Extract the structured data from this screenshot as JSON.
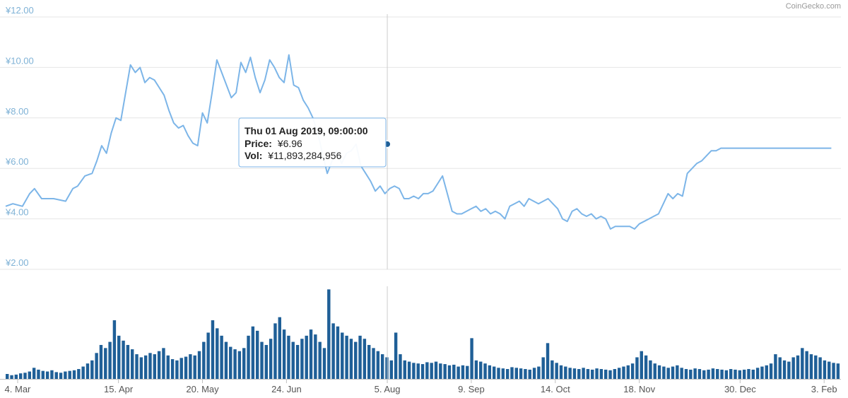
{
  "credit": "CoinGecko.com",
  "colors": {
    "line": "#7cb5e8",
    "volume": "#1f5f97",
    "grid": "#e6e6e6",
    "crosshair": "#cccccc",
    "marker": "#1f5f97",
    "tooltip_border": "#7cb5e8"
  },
  "tooltip": {
    "date": "Thu 01 Aug 2019, 09:00:00",
    "price_label": "Price:",
    "price_value": "¥6.96",
    "vol_label": "Vol:",
    "vol_value": "¥11,893,284,956"
  },
  "chart_data": {
    "type": "line",
    "ylim": [
      2,
      12
    ],
    "y_ticks": [
      "¥2.00",
      "¥4.00",
      "¥6.00",
      "¥8.00",
      "¥10.00",
      "¥12.00"
    ],
    "y_tick_values": [
      2,
      4,
      6,
      8,
      10,
      12
    ],
    "x_ticks": [
      "4. Mar",
      "15. Apr",
      "20. May",
      "24. Jun",
      "5. Aug",
      "9. Sep",
      "14. Oct",
      "18. Nov",
      "30. Dec",
      "3. Feb"
    ],
    "x_tick_days": [
      5,
      47,
      82,
      117,
      159,
      194,
      229,
      264,
      306,
      341
    ],
    "x_range_days": [
      0,
      348
    ],
    "grid": true,
    "price_series": {
      "day": [
        0,
        3,
        7,
        10,
        12,
        15,
        20,
        25,
        28,
        30,
        33,
        36,
        38,
        40,
        42,
        44,
        46,
        48,
        50,
        52,
        54,
        56,
        58,
        60,
        62,
        64,
        66,
        68,
        70,
        72,
        74,
        76,
        78,
        80,
        82,
        84,
        86,
        88,
        90,
        92,
        94,
        96,
        98,
        100,
        102,
        104,
        106,
        108,
        110,
        112,
        114,
        116,
        118,
        120,
        122,
        124,
        126,
        128,
        130,
        132,
        134,
        136,
        138,
        140,
        142,
        144,
        146,
        148,
        150,
        152,
        154,
        156,
        158,
        160,
        162,
        164,
        166,
        168,
        170,
        172,
        174,
        176,
        178,
        180,
        182,
        184,
        186,
        188,
        190,
        192,
        194,
        196,
        198,
        200,
        202,
        204,
        206,
        208,
        210,
        212,
        214,
        216,
        218,
        220,
        222,
        224,
        226,
        228,
        230,
        232,
        234,
        236,
        238,
        240,
        242,
        244,
        246,
        248,
        250,
        252,
        254,
        256,
        258,
        260,
        262,
        264,
        266,
        268,
        270,
        272,
        274,
        276,
        278,
        280,
        282,
        284,
        286,
        288,
        290,
        292,
        294,
        296,
        298,
        300,
        302,
        304,
        306,
        308,
        310,
        312,
        314,
        316,
        318,
        320,
        322,
        324,
        326,
        328,
        330,
        332,
        334,
        336,
        338,
        340,
        342,
        344,
        346,
        348
      ],
      "price": [
        4.5,
        4.6,
        4.5,
        5.0,
        5.2,
        4.8,
        4.8,
        4.7,
        5.2,
        5.3,
        5.7,
        5.8,
        6.3,
        6.9,
        6.6,
        7.4,
        8.0,
        7.9,
        9.0,
        10.1,
        9.8,
        10.0,
        9.4,
        9.6,
        9.5,
        9.2,
        8.9,
        8.3,
        7.8,
        7.6,
        7.7,
        7.3,
        7.0,
        6.9,
        8.2,
        7.8,
        9.0,
        10.3,
        9.8,
        9.3,
        8.8,
        9.0,
        10.2,
        9.8,
        10.4,
        9.6,
        9.0,
        9.5,
        10.3,
        10.0,
        9.6,
        9.4,
        10.5,
        9.3,
        9.2,
        8.7,
        8.4,
        8.0,
        7.4,
        6.6,
        5.8,
        6.3,
        6.7,
        6.2,
        6.6,
        6.7,
        6.96,
        6.1,
        5.8,
        5.5,
        5.1,
        5.3,
        5.0,
        5.2,
        5.3,
        5.2,
        4.8,
        4.8,
        4.9,
        4.8,
        5.0,
        5.0,
        5.1,
        5.4,
        5.7,
        5.0,
        4.3,
        4.2,
        4.2,
        4.3,
        4.4,
        4.5,
        4.3,
        4.4,
        4.2,
        4.3,
        4.2,
        4.0,
        4.5,
        4.6,
        4.7,
        4.5,
        4.8,
        4.7,
        4.6,
        4.7,
        4.8,
        4.6,
        4.4,
        4.0,
        3.9,
        4.3,
        4.4,
        4.2,
        4.1,
        4.2,
        4.0,
        4.1,
        4.0,
        3.6,
        3.7,
        3.7,
        3.7,
        3.7,
        3.6,
        3.8,
        3.9,
        4.0,
        4.1,
        4.2,
        4.6,
        5.0,
        4.8,
        5.0,
        4.9,
        5.8,
        6.0,
        6.2,
        6.3,
        6.5,
        6.7,
        6.7,
        6.8,
        6.8,
        6.8,
        6.8,
        6.8,
        6.8,
        6.8,
        6.8,
        6.8,
        6.8,
        6.8,
        6.8,
        6.8,
        6.8,
        6.8,
        6.8,
        6.8,
        6.8,
        6.8,
        6.8,
        6.8,
        6.8,
        6.8,
        6.8
      ]
    },
    "volume_series": {
      "bars_per_day": 1,
      "values": [
        0.08,
        0.06,
        0.07,
        0.09,
        0.1,
        0.12,
        0.18,
        0.15,
        0.13,
        0.12,
        0.14,
        0.11,
        0.1,
        0.12,
        0.13,
        0.14,
        0.16,
        0.2,
        0.25,
        0.3,
        0.42,
        0.55,
        0.5,
        0.6,
        0.95,
        0.7,
        0.62,
        0.55,
        0.48,
        0.4,
        0.35,
        0.38,
        0.42,
        0.4,
        0.45,
        0.5,
        0.38,
        0.32,
        0.3,
        0.34,
        0.36,
        0.4,
        0.38,
        0.45,
        0.6,
        0.75,
        0.95,
        0.82,
        0.7,
        0.6,
        0.52,
        0.48,
        0.45,
        0.5,
        0.7,
        0.85,
        0.78,
        0.6,
        0.55,
        0.65,
        0.9,
        1.0,
        0.8,
        0.7,
        0.6,
        0.55,
        0.65,
        0.7,
        0.8,
        0.72,
        0.6,
        0.5,
        1.45,
        0.9,
        0.85,
        0.75,
        0.7,
        0.65,
        0.6,
        0.7,
        0.65,
        0.55,
        0.5,
        0.45,
        0.4,
        0.35,
        0.3,
        0.75,
        0.4,
        0.3,
        0.28,
        0.26,
        0.25,
        0.24,
        0.27,
        0.26,
        0.28,
        0.25,
        0.24,
        0.22,
        0.23,
        0.2,
        0.22,
        0.21,
        0.66,
        0.3,
        0.28,
        0.25,
        0.22,
        0.2,
        0.18,
        0.17,
        0.16,
        0.19,
        0.18,
        0.17,
        0.16,
        0.15,
        0.18,
        0.2,
        0.35,
        0.58,
        0.3,
        0.26,
        0.22,
        0.2,
        0.18,
        0.17,
        0.16,
        0.18,
        0.16,
        0.15,
        0.17,
        0.16,
        0.15,
        0.14,
        0.16,
        0.18,
        0.2,
        0.22,
        0.25,
        0.35,
        0.45,
        0.38,
        0.3,
        0.25,
        0.22,
        0.2,
        0.18,
        0.2,
        0.22,
        0.18,
        0.16,
        0.15,
        0.17,
        0.16,
        0.14,
        0.15,
        0.17,
        0.16,
        0.15,
        0.14,
        0.16,
        0.15,
        0.14,
        0.15,
        0.16,
        0.15,
        0.18,
        0.2,
        0.22,
        0.25,
        0.4,
        0.35,
        0.3,
        0.28,
        0.35,
        0.38,
        0.5,
        0.45,
        0.4,
        0.38,
        0.35,
        0.3,
        0.28,
        0.26,
        0.25
      ]
    },
    "hover": {
      "date": "Thu 01 Aug 2019, 09:00:00",
      "price": 6.96,
      "volume": 11893284956
    }
  }
}
